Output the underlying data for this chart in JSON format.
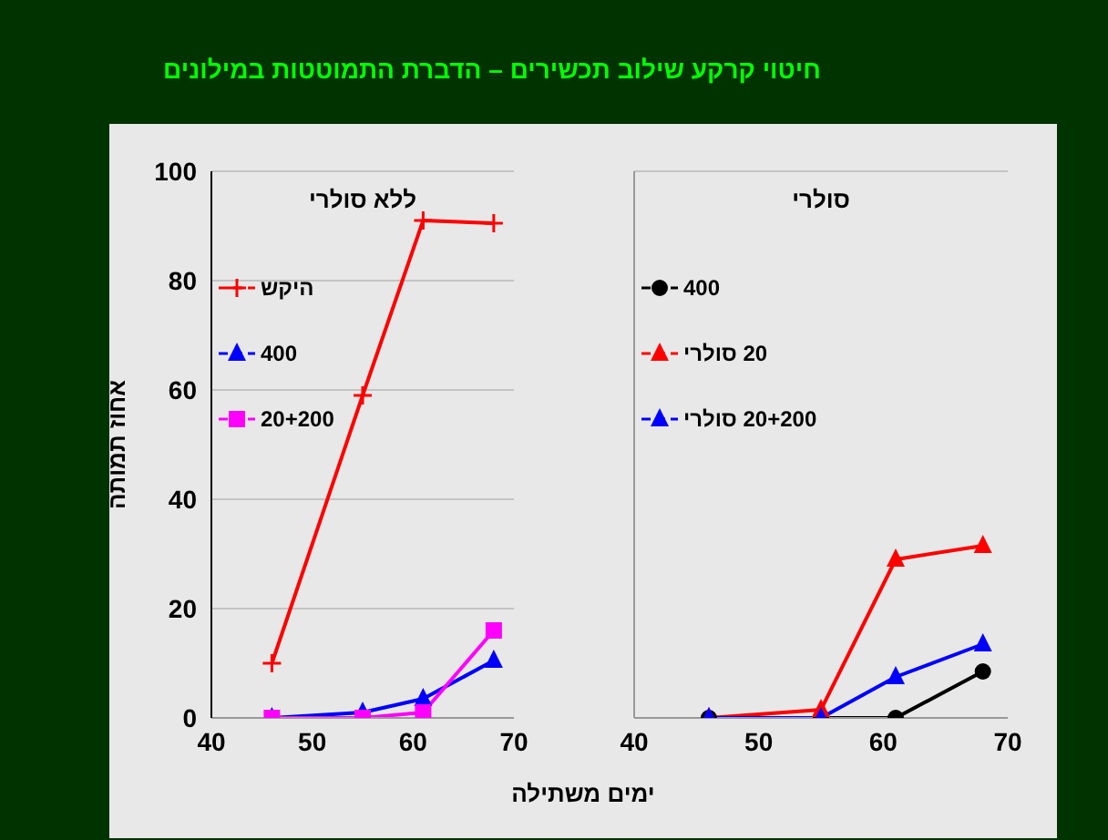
{
  "chart_data": [
    {
      "type": "line",
      "title": "חיטוי קרקע שילוב תכשירים – הדברת התמוטטות במילונים",
      "subtitle": "ללא סולרי",
      "xlabel": "ימים משתילה",
      "ylabel": "אחוז תמותה",
      "x": [
        46,
        55,
        61,
        68
      ],
      "xlim": [
        40,
        70
      ],
      "xticks": [
        40,
        50,
        60,
        70
      ],
      "ylim": [
        0,
        100
      ],
      "yticks": [
        0,
        20,
        40,
        60,
        80,
        100
      ],
      "grid": "y",
      "legend": "top left",
      "series": [
        {
          "name": "היקש",
          "color": "#ff0000",
          "marker": "cross",
          "values": [
            10,
            59,
            91,
            90.5
          ]
        },
        {
          "name": "400",
          "color": "#0000ff",
          "marker": "triangle",
          "values": [
            0,
            1,
            3.5,
            10.5
          ]
        },
        {
          "name": "20+200",
          "color": "#ff00ff",
          "marker": "square",
          "values": [
            0,
            0,
            1,
            16
          ]
        }
      ]
    },
    {
      "type": "line",
      "subtitle": "סולרי",
      "x": [
        46,
        55,
        61,
        68
      ],
      "xlim": [
        40,
        70
      ],
      "xticks": [
        40,
        50,
        60,
        70
      ],
      "ylim": [
        0,
        100
      ],
      "yticks": [
        0,
        20,
        40,
        60,
        80,
        100
      ],
      "grid": "y",
      "legend": "top left",
      "tick_labels": "x",
      "series": [
        {
          "name": "400",
          "color": "#000000",
          "marker": "circle",
          "values": [
            0,
            0,
            0,
            8.5
          ]
        },
        {
          "name": "20 סולרי",
          "color": "#ff0000",
          "marker": "triangle",
          "values": [
            0,
            1.5,
            29,
            31.5
          ]
        },
        {
          "name": "20+200 סולרי",
          "color": "#0000ff",
          "marker": "triangle",
          "values": [
            0,
            0,
            7.5,
            13.5
          ]
        }
      ]
    }
  ]
}
